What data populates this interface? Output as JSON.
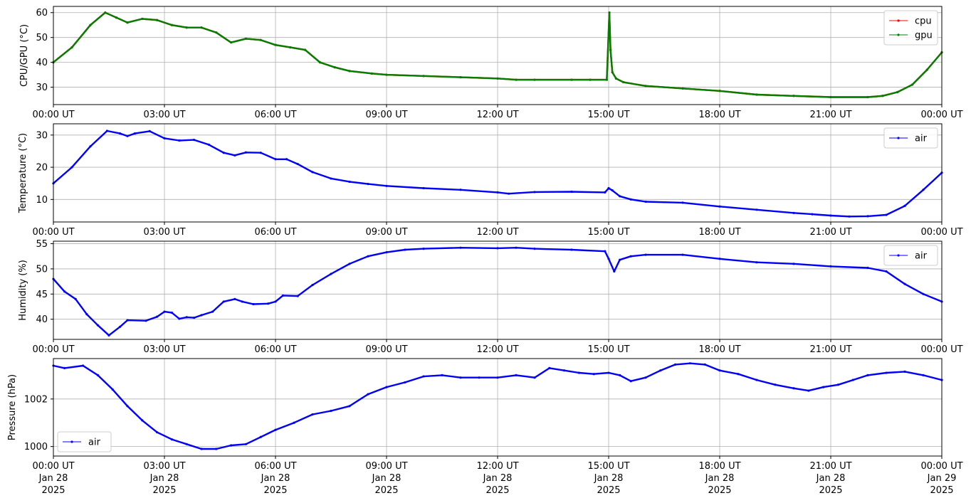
{
  "colors": {
    "cpu": "#ff0000",
    "gpu": "#008000",
    "air": "#0000ff",
    "grid": "#b0b0b0",
    "axes": "#000000"
  },
  "x_axis": {
    "range_hours": [
      0,
      24
    ],
    "tick_hours": [
      0,
      3,
      6,
      9,
      12,
      15,
      18,
      21,
      24
    ],
    "time_labels": [
      "00:00 UT",
      "03:00 UT",
      "06:00 UT",
      "09:00 UT",
      "12:00 UT",
      "15:00 UT",
      "18:00 UT",
      "21:00 UT",
      "00:00 UT"
    ],
    "date_labels": [
      "Jan 28",
      "Jan 28",
      "Jan 28",
      "Jan 28",
      "Jan 28",
      "Jan 28",
      "Jan 28",
      "Jan 28",
      "Jan 29"
    ],
    "year_labels": [
      "2025",
      "2025",
      "2025",
      "2025",
      "2025",
      "2025",
      "2025",
      "2025",
      "2025"
    ]
  },
  "chart_data": [
    {
      "type": "line",
      "ylabel": "CPU/GPU (°C)",
      "ylim": [
        23,
        62.5
      ],
      "yticks": [
        30,
        40,
        50,
        60
      ],
      "ytick_labels": [
        "30",
        "40",
        "50",
        "60"
      ],
      "grid": true,
      "legend": "top-right",
      "series": [
        {
          "name": "cpu",
          "color": "#ff0000",
          "x": [
            0,
            0.5,
            1.0,
            1.4,
            1.7,
            2.0,
            2.4,
            2.8,
            3.2,
            3.6,
            4.0,
            4.4,
            4.8,
            5.2,
            5.6,
            6.0,
            6.4,
            6.8,
            7.2,
            7.6,
            8.0,
            8.6,
            9.0,
            10.0,
            11.0,
            12.0,
            12.5,
            13.0,
            14.0,
            14.5,
            14.95,
            15.02,
            15.05,
            15.1,
            15.2,
            15.4,
            16.0,
            17.0,
            18.0,
            19.0,
            20.0,
            21.0,
            22.0,
            22.4,
            22.8,
            23.2,
            23.6,
            24.0
          ],
          "values": [
            40,
            46,
            55,
            60,
            58,
            56,
            57.5,
            57,
            55,
            54,
            54,
            52,
            48,
            49.5,
            49,
            47,
            46,
            45,
            40,
            38,
            36.5,
            35.5,
            35,
            34.5,
            34,
            33.5,
            33,
            33,
            33,
            33,
            33,
            60,
            45,
            36,
            33.5,
            32,
            30.5,
            29.5,
            28.5,
            27,
            26.5,
            26,
            26,
            26.5,
            28,
            31,
            37,
            44
          ]
        },
        {
          "name": "gpu",
          "color": "#008000",
          "x": [
            0,
            0.5,
            1.0,
            1.4,
            1.7,
            2.0,
            2.4,
            2.8,
            3.2,
            3.6,
            4.0,
            4.4,
            4.8,
            5.2,
            5.6,
            6.0,
            6.4,
            6.8,
            7.2,
            7.6,
            8.0,
            8.6,
            9.0,
            10.0,
            11.0,
            12.0,
            12.5,
            13.0,
            14.0,
            14.5,
            14.95,
            15.02,
            15.05,
            15.1,
            15.2,
            15.4,
            16.0,
            17.0,
            18.0,
            19.0,
            20.0,
            21.0,
            22.0,
            22.4,
            22.8,
            23.2,
            23.6,
            24.0
          ],
          "values": [
            40,
            46,
            55,
            60,
            58,
            56,
            57.5,
            57,
            55,
            54,
            54,
            52,
            48,
            49.5,
            49,
            47,
            46,
            45,
            40,
            38,
            36.5,
            35.5,
            35,
            34.5,
            34,
            33.5,
            33,
            33,
            33,
            33,
            33,
            60,
            45,
            36,
            33.5,
            32,
            30.5,
            29.5,
            28.5,
            27,
            26.5,
            26,
            26,
            26.5,
            28,
            31,
            37,
            44
          ]
        }
      ]
    },
    {
      "type": "line",
      "ylabel": "Temperature (°C)",
      "ylim": [
        3,
        33.5
      ],
      "yticks": [
        10,
        20,
        30
      ],
      "ytick_labels": [
        "10",
        "20",
        "30"
      ],
      "grid": true,
      "legend": "top-right",
      "series": [
        {
          "name": "air",
          "color": "#0000ff",
          "x": [
            0,
            0.5,
            1.0,
            1.45,
            1.8,
            2.0,
            2.2,
            2.6,
            3.0,
            3.4,
            3.8,
            4.2,
            4.6,
            4.9,
            5.2,
            5.6,
            6.0,
            6.3,
            6.6,
            7.0,
            7.5,
            8.0,
            8.5,
            9.0,
            10.0,
            11.0,
            12.0,
            12.3,
            13.0,
            14.0,
            14.9,
            15.0,
            15.1,
            15.3,
            15.6,
            16.0,
            17.0,
            18.0,
            19.0,
            20.0,
            20.5,
            21.0,
            21.5,
            22.0,
            22.5,
            23.0,
            23.5,
            24.0
          ],
          "values": [
            15,
            20,
            26.5,
            31.3,
            30.5,
            29.7,
            30.5,
            31.2,
            29,
            28.3,
            28.5,
            27,
            24.5,
            23.7,
            24.6,
            24.5,
            22.5,
            22.5,
            21,
            18.5,
            16.5,
            15.5,
            14.8,
            14.2,
            13.5,
            13,
            12.2,
            11.8,
            12.3,
            12.4,
            12.2,
            13.5,
            12.8,
            11,
            10,
            9.3,
            9,
            7.8,
            6.8,
            5.8,
            5.4,
            5,
            4.7,
            4.8,
            5.2,
            8,
            13,
            18.3
          ]
        }
      ]
    },
    {
      "type": "line",
      "ylabel": "Humidity (%)",
      "ylim": [
        36,
        55.5
      ],
      "yticks": [
        40,
        45,
        50,
        55
      ],
      "ytick_labels": [
        "40",
        "45",
        "50",
        "55"
      ],
      "grid": true,
      "legend": "top-right",
      "series": [
        {
          "name": "air",
          "color": "#0000ff",
          "x": [
            0,
            0.3,
            0.6,
            0.9,
            1.2,
            1.5,
            1.8,
            2.0,
            2.5,
            2.8,
            3.0,
            3.2,
            3.4,
            3.6,
            3.8,
            4.0,
            4.3,
            4.6,
            4.9,
            5.1,
            5.4,
            5.8,
            6.0,
            6.2,
            6.6,
            7.0,
            7.5,
            8.0,
            8.5,
            9.0,
            9.5,
            10.0,
            11.0,
            12.0,
            12.5,
            13.0,
            14.0,
            14.9,
            15.0,
            15.15,
            15.3,
            15.6,
            16.0,
            17.0,
            18.0,
            19.0,
            20.0,
            21.0,
            22.0,
            22.5,
            23.0,
            23.5,
            24.0
          ],
          "values": [
            48,
            45.5,
            44,
            41,
            38.8,
            36.8,
            38.5,
            39.8,
            39.7,
            40.5,
            41.5,
            41.3,
            40.1,
            40.4,
            40.3,
            40.8,
            41.5,
            43.5,
            44,
            43.5,
            43,
            43.1,
            43.5,
            44.7,
            44.6,
            46.8,
            49,
            51,
            52.5,
            53.3,
            53.8,
            54,
            54.2,
            54.1,
            54.2,
            54,
            53.8,
            53.5,
            52,
            49.5,
            51.8,
            52.5,
            52.8,
            52.8,
            52,
            51.3,
            51,
            50.5,
            50.2,
            49.5,
            47,
            45,
            43.5
          ]
        }
      ]
    },
    {
      "type": "line",
      "ylabel": "Pressure (hPa)",
      "ylim": [
        999.6,
        1003.7
      ],
      "yticks": [
        1000,
        1002
      ],
      "ytick_labels": [
        "1000",
        "1002"
      ],
      "grid": true,
      "legend": "lower-left",
      "series": [
        {
          "name": "air",
          "color": "#0000ff",
          "x": [
            0,
            0.3,
            0.8,
            1.2,
            1.6,
            2.0,
            2.4,
            2.8,
            3.2,
            3.6,
            4.0,
            4.4,
            4.8,
            5.2,
            5.6,
            6.0,
            6.5,
            7.0,
            7.5,
            8.0,
            8.5,
            9.0,
            9.5,
            10.0,
            10.5,
            11.0,
            11.5,
            12.0,
            12.5,
            13.0,
            13.4,
            13.8,
            14.2,
            14.6,
            15.0,
            15.3,
            15.6,
            16.0,
            16.4,
            16.8,
            17.2,
            17.6,
            18.0,
            18.5,
            19.0,
            19.5,
            20.0,
            20.4,
            20.8,
            21.2,
            21.6,
            22.0,
            22.5,
            23.0,
            23.5,
            24.0
          ],
          "values": [
            1003.4,
            1003.3,
            1003.4,
            1003,
            1002.4,
            1001.7,
            1001.1,
            1000.6,
            1000.3,
            1000.1,
            999.9,
            999.9,
            1000.05,
            1000.1,
            1000.4,
            1000.7,
            1001,
            1001.35,
            1001.5,
            1001.7,
            1002.2,
            1002.5,
            1002.7,
            1002.95,
            1003,
            1002.9,
            1002.9,
            1002.9,
            1003,
            1002.9,
            1003.3,
            1003.2,
            1003.1,
            1003.05,
            1003.1,
            1003,
            1002.75,
            1002.9,
            1003.2,
            1003.45,
            1003.5,
            1003.45,
            1003.2,
            1003.05,
            1002.8,
            1002.6,
            1002.45,
            1002.35,
            1002.5,
            1002.6,
            1002.8,
            1003,
            1003.1,
            1003.15,
            1003.0,
            1002.8
          ]
        }
      ]
    }
  ]
}
